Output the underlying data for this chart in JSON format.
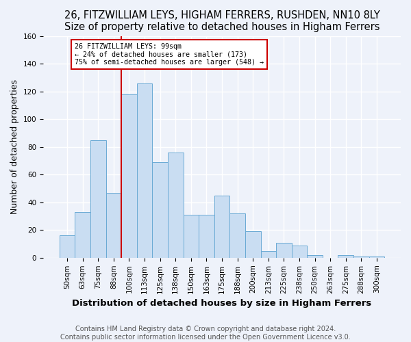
{
  "title": "26, FITZWILLIAM LEYS, HIGHAM FERRERS, RUSHDEN, NN10 8LY",
  "subtitle": "Size of property relative to detached houses in Higham Ferrers",
  "xlabel": "Distribution of detached houses by size in Higham Ferrers",
  "ylabel": "Number of detached properties",
  "footer1": "Contains HM Land Registry data © Crown copyright and database right 2024.",
  "footer2": "Contains public sector information licensed under the Open Government Licence v3.0.",
  "bar_labels": [
    "50sqm",
    "63sqm",
    "75sqm",
    "88sqm",
    "100sqm",
    "113sqm",
    "125sqm",
    "138sqm",
    "150sqm",
    "163sqm",
    "175sqm",
    "188sqm",
    "200sqm",
    "213sqm",
    "225sqm",
    "238sqm",
    "250sqm",
    "263sqm",
    "275sqm",
    "288sqm",
    "300sqm"
  ],
  "bar_values": [
    16,
    33,
    85,
    47,
    118,
    126,
    69,
    76,
    31,
    31,
    45,
    32,
    19,
    5,
    11,
    9,
    2,
    0,
    2,
    1,
    1
  ],
  "bar_color": "#c9ddf2",
  "bar_edge_color": "#6aaad4",
  "vline_position": 4,
  "marker_label": "26 FITZWILLIAM LEYS: 99sqm",
  "annotation_line1": "← 24% of detached houses are smaller (173)",
  "annotation_line2": "75% of semi-detached houses are larger (548) →",
  "vline_color": "#cc0000",
  "annotation_box_edge": "#cc0000",
  "ylim": [
    0,
    160
  ],
  "yticks": [
    0,
    20,
    40,
    60,
    80,
    100,
    120,
    140,
    160
  ],
  "background_color": "#eef2fa",
  "grid_color": "#ffffff",
  "title_fontsize": 10.5,
  "axis_label_fontsize": 9,
  "tick_fontsize": 7.5,
  "footer_fontsize": 7
}
